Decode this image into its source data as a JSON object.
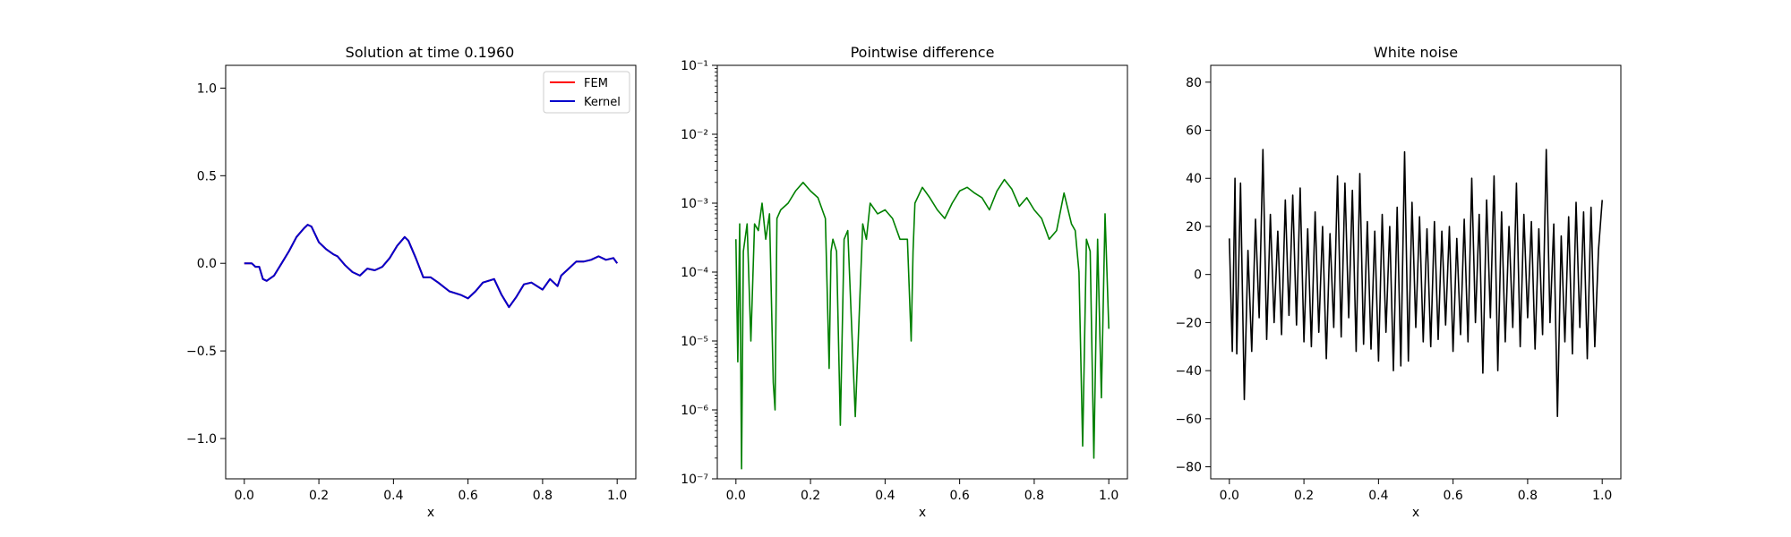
{
  "chart_data": [
    {
      "type": "line",
      "title": "Solution at time 0.1960",
      "xlabel": "x",
      "ylabel": "",
      "xlim": [
        -0.05,
        1.05
      ],
      "ylim": [
        -1.23,
        1.13
      ],
      "xticks": [
        "0.0",
        "0.2",
        "0.4",
        "0.6",
        "0.8",
        "1.0"
      ],
      "yticks": [
        "−1.0",
        "−0.5",
        "0.0",
        "0.5",
        "1.0"
      ],
      "legend": {
        "placement": "upper right",
        "entries": [
          "FEM",
          "Kernel"
        ]
      },
      "series": [
        {
          "name": "FEM",
          "color": "#ff0000",
          "x": [
            0.0,
            0.02,
            0.03,
            0.04,
            0.05,
            0.06,
            0.08,
            0.1,
            0.12,
            0.14,
            0.16,
            0.17,
            0.18,
            0.2,
            0.22,
            0.24,
            0.25,
            0.27,
            0.29,
            0.31,
            0.33,
            0.35,
            0.37,
            0.39,
            0.41,
            0.43,
            0.44,
            0.46,
            0.48,
            0.5,
            0.52,
            0.55,
            0.58,
            0.6,
            0.62,
            0.64,
            0.67,
            0.69,
            0.71,
            0.73,
            0.75,
            0.77,
            0.8,
            0.82,
            0.84,
            0.85,
            0.87,
            0.89,
            0.91,
            0.93,
            0.95,
            0.97,
            0.99,
            1.0
          ],
          "y": [
            0.0,
            0.0,
            -0.02,
            -0.02,
            -0.09,
            -0.1,
            -0.07,
            0.0,
            0.07,
            0.15,
            0.2,
            0.22,
            0.21,
            0.12,
            0.08,
            0.05,
            0.04,
            -0.01,
            -0.05,
            -0.07,
            -0.03,
            -0.04,
            -0.02,
            0.03,
            0.1,
            0.15,
            0.13,
            0.03,
            -0.08,
            -0.08,
            -0.11,
            -0.16,
            -0.18,
            -0.2,
            -0.16,
            -0.11,
            -0.09,
            -0.18,
            -0.25,
            -0.19,
            -0.12,
            -0.11,
            -0.15,
            -0.09,
            -0.13,
            -0.07,
            -0.03,
            0.01,
            0.01,
            0.02,
            0.04,
            0.02,
            0.03,
            0.0
          ]
        },
        {
          "name": "Kernel",
          "color": "#0000cc",
          "x": [
            0.0,
            0.02,
            0.03,
            0.04,
            0.05,
            0.06,
            0.08,
            0.1,
            0.12,
            0.14,
            0.16,
            0.17,
            0.18,
            0.2,
            0.22,
            0.24,
            0.25,
            0.27,
            0.29,
            0.31,
            0.33,
            0.35,
            0.37,
            0.39,
            0.41,
            0.43,
            0.44,
            0.46,
            0.48,
            0.5,
            0.52,
            0.55,
            0.58,
            0.6,
            0.62,
            0.64,
            0.67,
            0.69,
            0.71,
            0.73,
            0.75,
            0.77,
            0.8,
            0.82,
            0.84,
            0.85,
            0.87,
            0.89,
            0.91,
            0.93,
            0.95,
            0.97,
            0.99,
            1.0
          ],
          "y": [
            0.0,
            0.0,
            -0.02,
            -0.02,
            -0.09,
            -0.1,
            -0.07,
            0.0,
            0.07,
            0.15,
            0.2,
            0.22,
            0.21,
            0.12,
            0.08,
            0.05,
            0.04,
            -0.01,
            -0.05,
            -0.07,
            -0.03,
            -0.04,
            -0.02,
            0.03,
            0.1,
            0.15,
            0.13,
            0.03,
            -0.08,
            -0.08,
            -0.11,
            -0.16,
            -0.18,
            -0.2,
            -0.16,
            -0.11,
            -0.09,
            -0.18,
            -0.25,
            -0.19,
            -0.12,
            -0.11,
            -0.15,
            -0.09,
            -0.13,
            -0.07,
            -0.03,
            0.01,
            0.01,
            0.02,
            0.04,
            0.02,
            0.03,
            0.0
          ]
        }
      ]
    },
    {
      "type": "line",
      "title": "Pointwise difference",
      "xlabel": "x",
      "ylabel": "",
      "yscale": "log",
      "xlim": [
        -0.05,
        1.05
      ],
      "ylim": [
        1e-07,
        0.1
      ],
      "xticks": [
        "0.0",
        "0.2",
        "0.4",
        "0.6",
        "0.8",
        "1.0"
      ],
      "yticks": [
        "10⁻⁷",
        "10⁻⁶",
        "10⁻⁵",
        "10⁻⁴",
        "10⁻³",
        "10⁻²",
        "10⁻¹"
      ],
      "series": [
        {
          "color": "#008000",
          "x": [
            0.0,
            0.005,
            0.01,
            0.015,
            0.02,
            0.03,
            0.04,
            0.05,
            0.06,
            0.07,
            0.08,
            0.09,
            0.1,
            0.105,
            0.11,
            0.12,
            0.14,
            0.16,
            0.18,
            0.2,
            0.22,
            0.24,
            0.25,
            0.255,
            0.26,
            0.27,
            0.28,
            0.29,
            0.3,
            0.32,
            0.34,
            0.35,
            0.36,
            0.38,
            0.4,
            0.42,
            0.44,
            0.46,
            0.47,
            0.475,
            0.48,
            0.5,
            0.52,
            0.54,
            0.56,
            0.58,
            0.6,
            0.62,
            0.64,
            0.66,
            0.68,
            0.7,
            0.72,
            0.74,
            0.76,
            0.78,
            0.8,
            0.82,
            0.84,
            0.86,
            0.88,
            0.9,
            0.91,
            0.92,
            0.93,
            0.94,
            0.95,
            0.96,
            0.97,
            0.98,
            0.99,
            1.0
          ],
          "y": [
            0.0003,
            5e-06,
            0.0005,
            1.4e-07,
            0.0002,
            0.0005,
            1e-05,
            0.0005,
            0.0004,
            0.001,
            0.0003,
            0.0007,
            2.5e-06,
            1e-06,
            0.0006,
            0.0008,
            0.001,
            0.0015,
            0.002,
            0.0015,
            0.0012,
            0.0006,
            4e-06,
            0.0002,
            0.0003,
            0.0002,
            6e-07,
            0.0003,
            0.0004,
            8e-07,
            0.0005,
            0.0003,
            0.001,
            0.0007,
            0.0008,
            0.0006,
            0.0003,
            0.0003,
            1e-05,
            0.0002,
            0.001,
            0.0017,
            0.0012,
            0.0008,
            0.0006,
            0.001,
            0.0015,
            0.0017,
            0.0014,
            0.0012,
            0.0008,
            0.0015,
            0.0022,
            0.0016,
            0.0009,
            0.0012,
            0.0008,
            0.0006,
            0.0003,
            0.0004,
            0.0014,
            0.0005,
            0.0004,
            0.0001,
            3e-07,
            0.0003,
            0.0002,
            2e-07,
            0.0003,
            1.5e-06,
            0.0007,
            1.5e-05
          ]
        }
      ]
    },
    {
      "type": "line",
      "title": "White noise",
      "xlabel": "x",
      "ylabel": "",
      "xlim": [
        -0.05,
        1.05
      ],
      "ylim": [
        -85,
        87
      ],
      "xticks": [
        "0.0",
        "0.2",
        "0.4",
        "0.6",
        "0.8",
        "1.0"
      ],
      "yticks": [
        "−80",
        "−60",
        "−40",
        "−20",
        "0",
        "20",
        "40",
        "60",
        "80"
      ],
      "series": [
        {
          "color": "#000000",
          "x": [
            0.0,
            0.008,
            0.015,
            0.02,
            0.03,
            0.04,
            0.05,
            0.06,
            0.07,
            0.08,
            0.09,
            0.1,
            0.11,
            0.12,
            0.13,
            0.14,
            0.15,
            0.16,
            0.17,
            0.18,
            0.19,
            0.2,
            0.21,
            0.22,
            0.23,
            0.24,
            0.25,
            0.26,
            0.27,
            0.28,
            0.29,
            0.3,
            0.31,
            0.32,
            0.33,
            0.34,
            0.35,
            0.36,
            0.37,
            0.38,
            0.39,
            0.4,
            0.41,
            0.42,
            0.43,
            0.44,
            0.45,
            0.46,
            0.47,
            0.48,
            0.49,
            0.5,
            0.51,
            0.52,
            0.53,
            0.54,
            0.55,
            0.56,
            0.57,
            0.58,
            0.59,
            0.6,
            0.61,
            0.62,
            0.63,
            0.64,
            0.65,
            0.66,
            0.67,
            0.68,
            0.69,
            0.7,
            0.71,
            0.72,
            0.73,
            0.74,
            0.75,
            0.76,
            0.77,
            0.78,
            0.79,
            0.8,
            0.81,
            0.82,
            0.83,
            0.84,
            0.85,
            0.86,
            0.87,
            0.88,
            0.89,
            0.9,
            0.91,
            0.92,
            0.93,
            0.94,
            0.95,
            0.96,
            0.97,
            0.98,
            0.99,
            1.0
          ],
          "y": [
            15,
            -32,
            40,
            -33,
            38,
            -52,
            10,
            -32,
            23,
            -18,
            52,
            -27,
            25,
            -20,
            18,
            -25,
            31,
            -17,
            33,
            -21,
            36,
            -28,
            19,
            -30,
            26,
            -24,
            20,
            -35,
            17,
            -22,
            41,
            -26,
            38,
            -18,
            35,
            -32,
            42,
            -29,
            22,
            -31,
            18,
            -36,
            25,
            -24,
            20,
            -40,
            28,
            -38,
            51,
            -36,
            30,
            -22,
            24,
            -28,
            19,
            -30,
            22,
            -27,
            18,
            -21,
            20,
            -32,
            15,
            -25,
            23,
            -28,
            40,
            -20,
            25,
            -41,
            31,
            -18,
            41,
            -40,
            26,
            -28,
            20,
            -22,
            38,
            -30,
            25,
            -18,
            22,
            -31,
            19,
            -25,
            52,
            -20,
            21,
            -59,
            16,
            -28,
            24,
            -33,
            30,
            -22,
            26,
            -35,
            28,
            -30,
            10,
            31
          ]
        }
      ]
    }
  ]
}
